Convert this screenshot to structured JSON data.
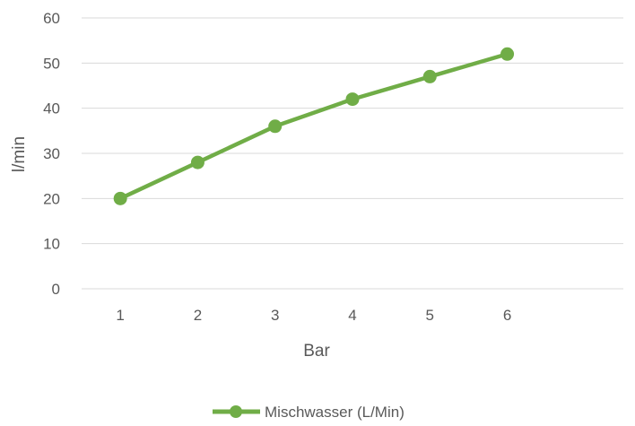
{
  "chart_data": {
    "type": "line",
    "title": "",
    "xlabel": "Bar",
    "ylabel": "l/min",
    "x": [
      1,
      2,
      3,
      4,
      5,
      6
    ],
    "x_tick_labels": [
      "1",
      "2",
      "3",
      "4",
      "5",
      "6"
    ],
    "y_ticks": [
      0,
      10,
      20,
      30,
      40,
      50,
      60
    ],
    "ylim": [
      0,
      60
    ],
    "grid": true,
    "legend_position": "bottom",
    "series": [
      {
        "name": "Mischwasser (L/Min)",
        "color": "#70ad47",
        "values": [
          20,
          28,
          36,
          42,
          47,
          52
        ]
      }
    ]
  }
}
